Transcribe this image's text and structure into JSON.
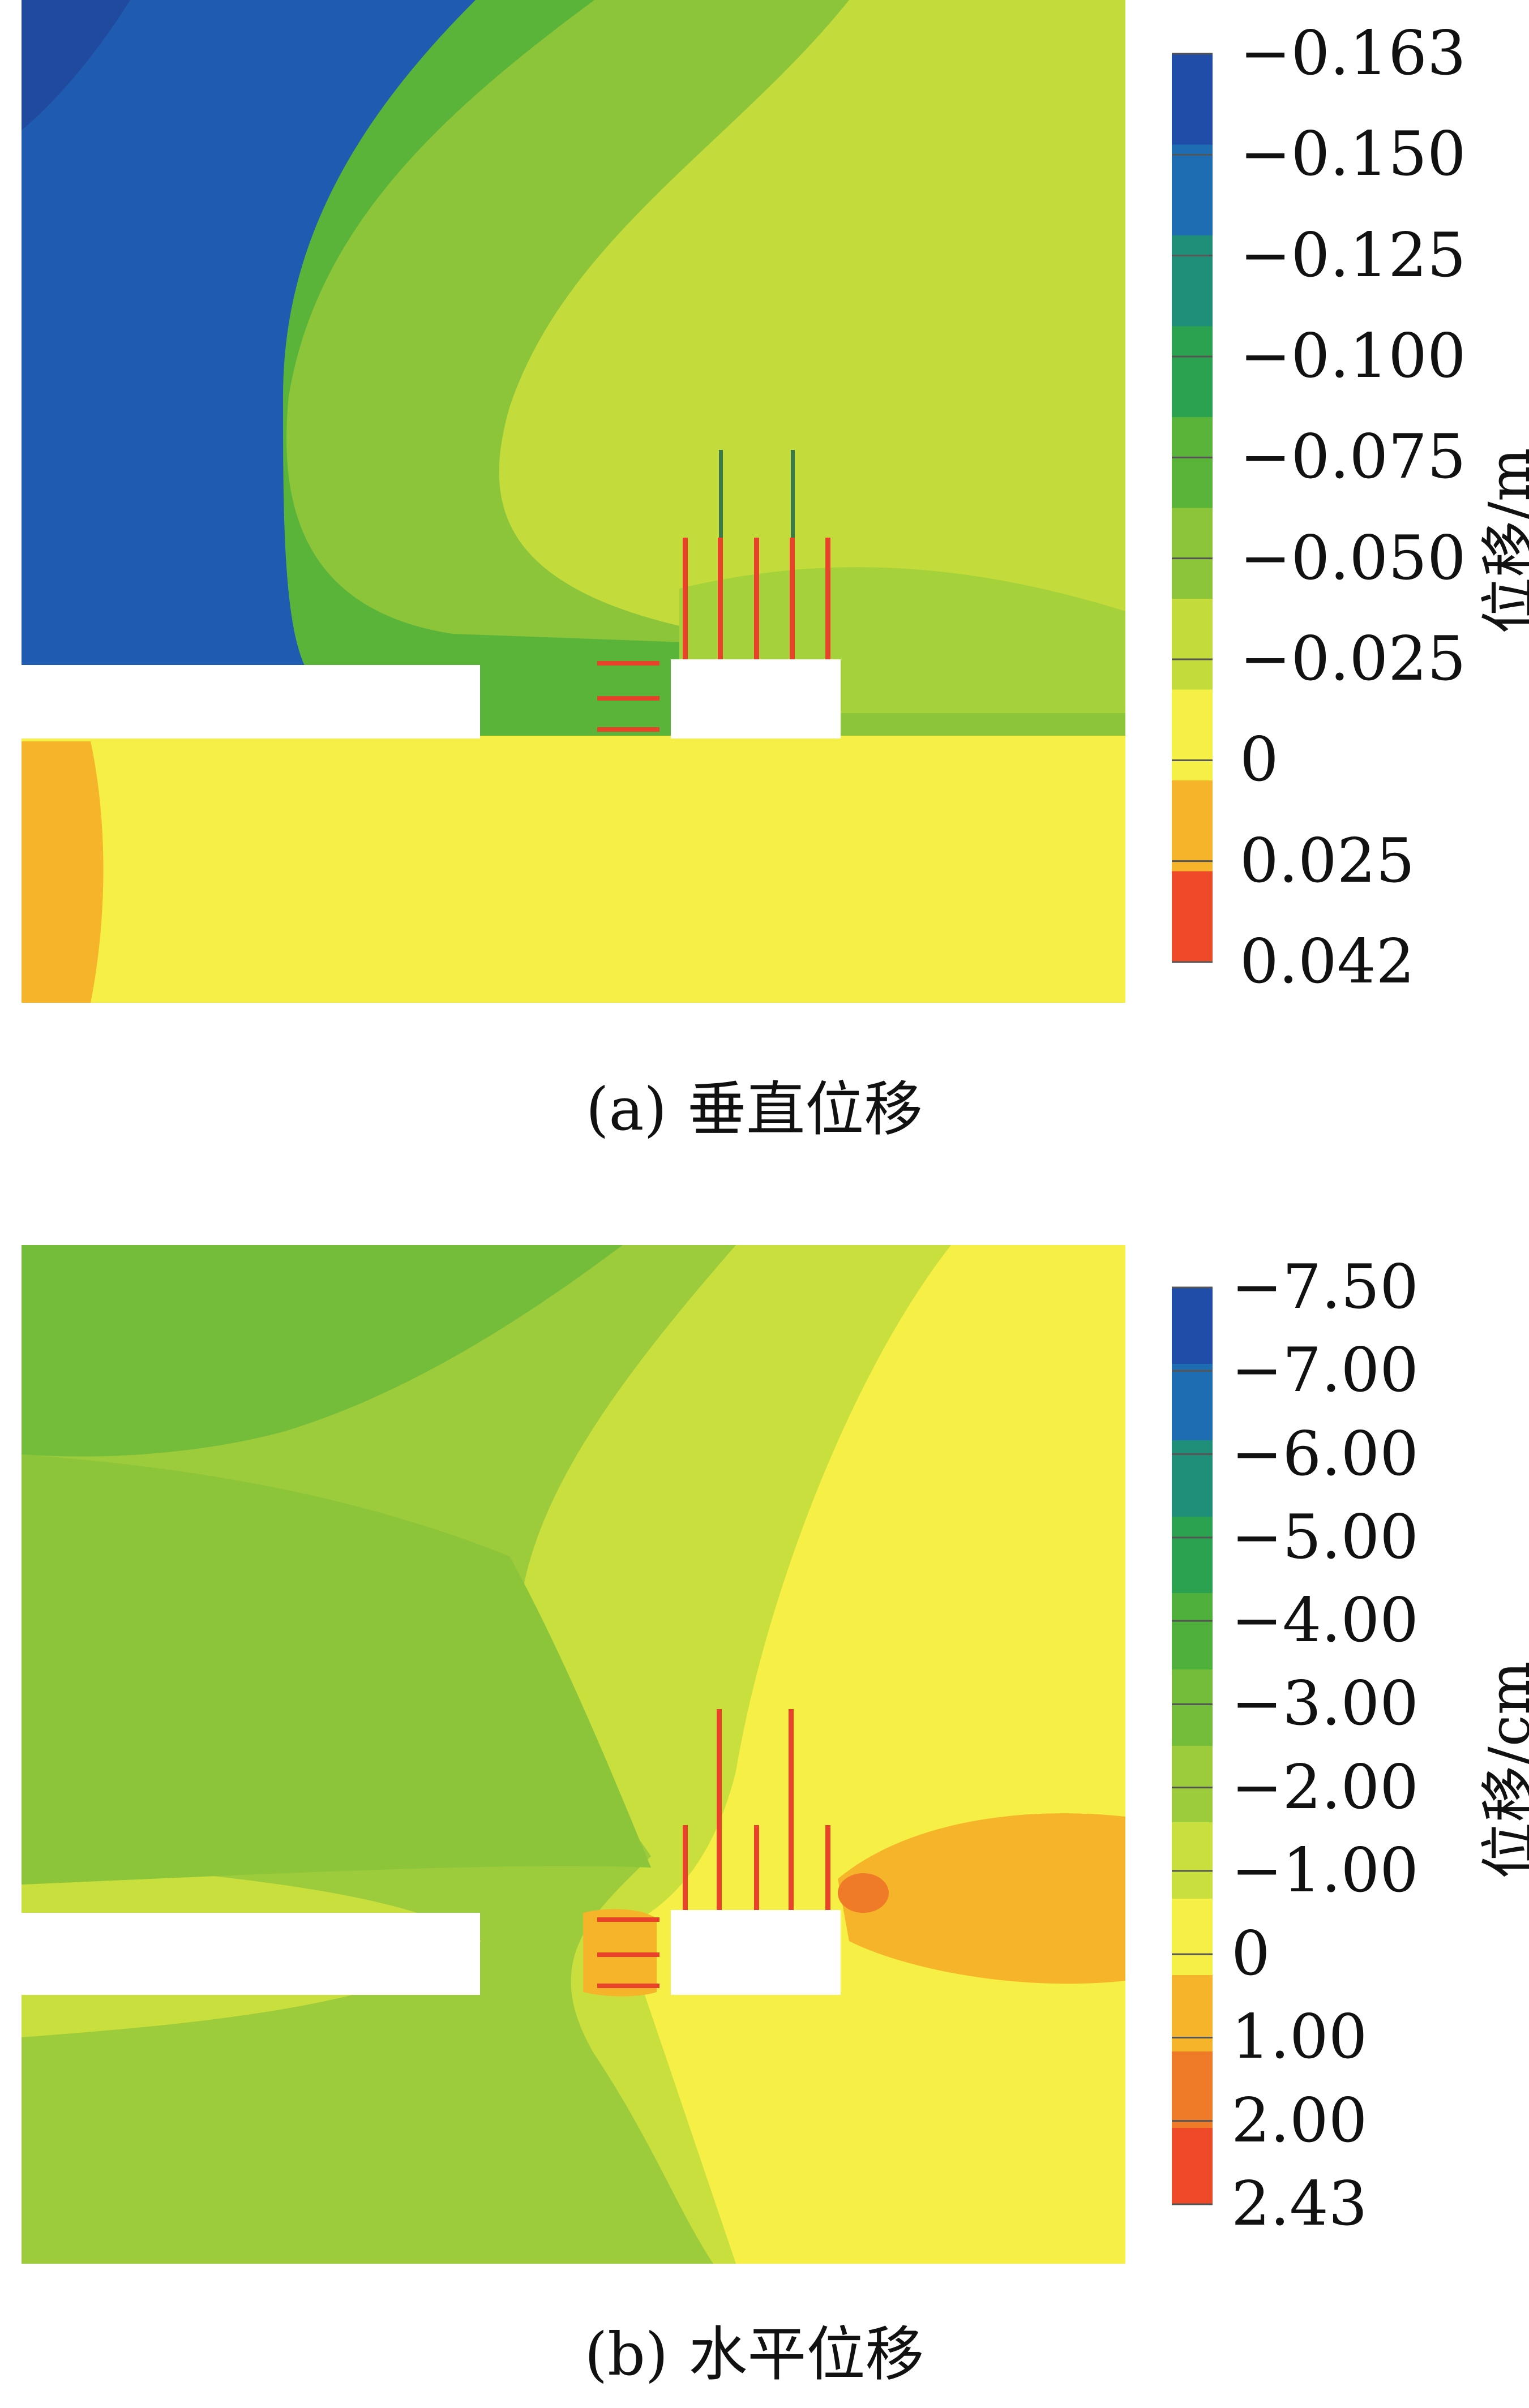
{
  "figure": {
    "panel_a": {
      "caption_tag": "(a)",
      "caption_text": "垂直位移",
      "unit_label": "位移/m",
      "colorbar_ticks": [
        "−0.163",
        "−0.150",
        "−0.125",
        "−0.100",
        "−0.075",
        "−0.050",
        "−0.025",
        "0",
        "0.025",
        "0.042"
      ],
      "colorbar_colors": [
        "#1f4da8",
        "#1e6db3",
        "#1f8f7a",
        "#2ba24f",
        "#5bb43a",
        "#8cc53a",
        "#c3dc3c",
        "#f6ef45",
        "#f5b42a",
        "#ee4a2a"
      ]
    },
    "panel_b": {
      "caption_tag": "(b)",
      "caption_text": "水平位移",
      "unit_label": "位移/cm",
      "colorbar_ticks": [
        "−7.50",
        "−7.00",
        "−6.00",
        "−5.00",
        "−4.00",
        "−3.00",
        "−2.00",
        "−1.00",
        "0",
        "1.00",
        "2.00",
        "2.43"
      ],
      "colorbar_colors": [
        "#1f4da8",
        "#1e6db3",
        "#1f8f7a",
        "#2ba24f",
        "#4fb03b",
        "#73bd3a",
        "#9ccb3b",
        "#c8df3d",
        "#f6ef45",
        "#f5b42a",
        "#ef7a28",
        "#ee4a2a"
      ]
    }
  }
}
